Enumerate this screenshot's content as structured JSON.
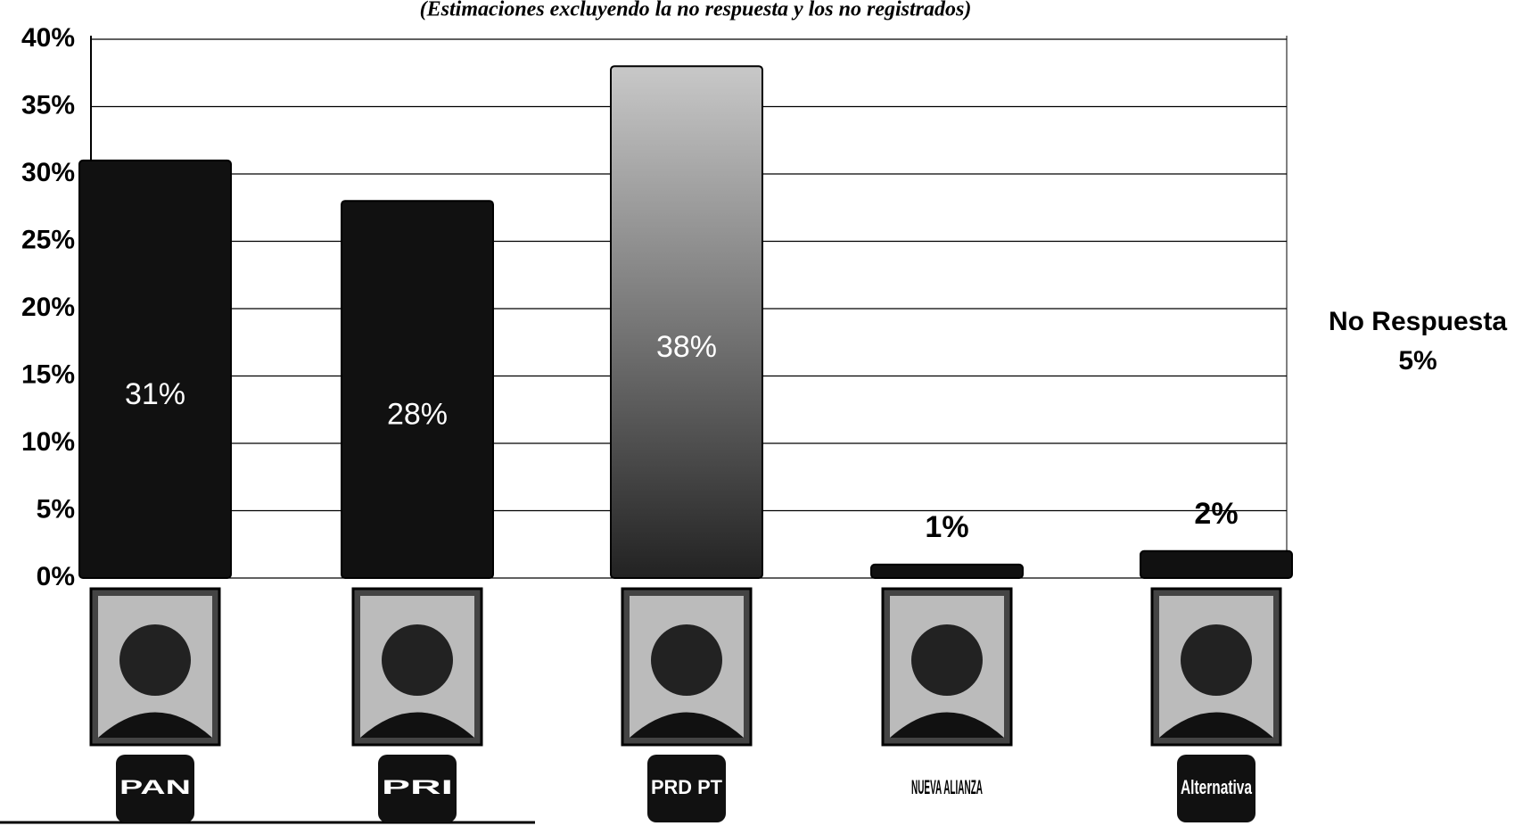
{
  "chart_data": {
    "type": "bar",
    "subtitle": "(Estimaciones excluyendo la no respuesta y los no registrados)",
    "categories": [
      "PAN",
      "PRI",
      "PRD PT",
      "NUEVA ALIANZA",
      "Alternativa"
    ],
    "values": [
      31,
      28,
      38,
      1,
      2
    ],
    "value_labels": [
      "31%",
      "28%",
      "38%",
      "1%",
      "2%"
    ],
    "colors": [
      "#111111",
      "#111111",
      "#8a8a8a",
      "#111111",
      "#111111"
    ],
    "ylim": [
      0,
      40
    ],
    "yticks": [
      {
        "value": 0,
        "label": "0%"
      },
      {
        "value": 5,
        "label": "5%"
      },
      {
        "value": 10,
        "label": "10%"
      },
      {
        "value": 15,
        "label": "15%"
      },
      {
        "value": 20,
        "label": "20%"
      },
      {
        "value": 25,
        "label": "25%"
      },
      {
        "value": 30,
        "label": "30%"
      },
      {
        "value": 35,
        "label": "35%"
      },
      {
        "value": 40,
        "label": "40%"
      }
    ],
    "grid": true,
    "annotations": [
      "No Respuesta",
      "5%"
    ]
  }
}
